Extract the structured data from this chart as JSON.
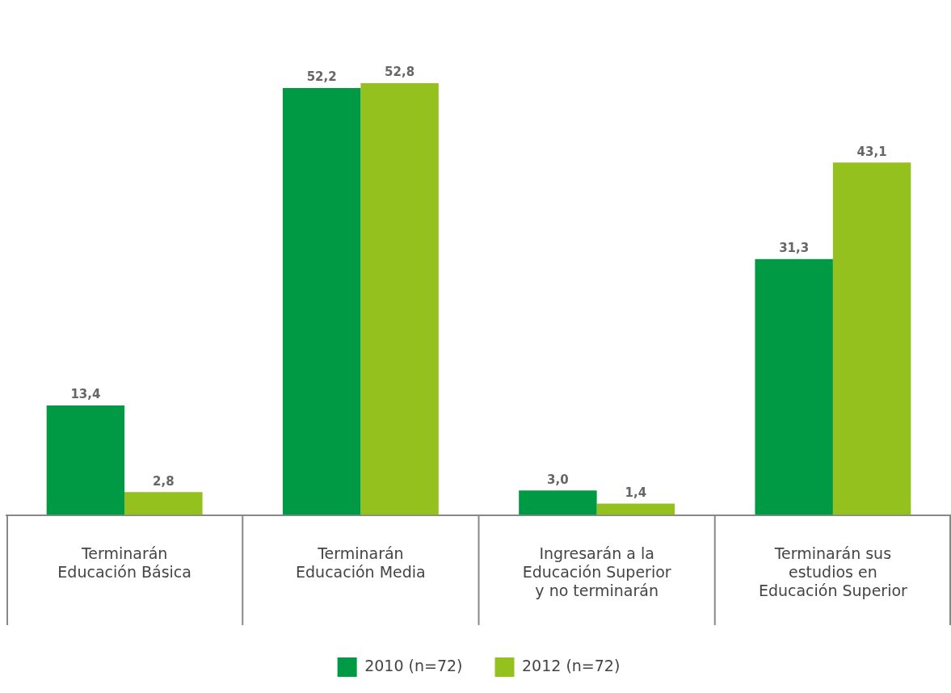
{
  "chart_data": {
    "type": "bar",
    "categories": [
      "Terminarán\nEducación Básica",
      "Terminarán\nEducación Media",
      "Ingresarán a la\nEducación Superior\ny no terminarán",
      "Terminarán sus\nestudios en\nEducación Superior"
    ],
    "series": [
      {
        "name": "2010\n(n=72)",
        "color": "#009a44",
        "values": [
          13.4,
          52.2,
          3.0,
          31.3
        ],
        "value_labels": [
          "13,4",
          "52,2",
          "3,0",
          "31,3"
        ]
      },
      {
        "name": "2012\n(n=72)",
        "color": "#95c11f",
        "values": [
          2.8,
          52.8,
          1.4,
          43.1
        ],
        "value_labels": [
          "2,8",
          "52,8",
          "1,4",
          "43,1"
        ]
      }
    ],
    "legend": "bottom"
  }
}
